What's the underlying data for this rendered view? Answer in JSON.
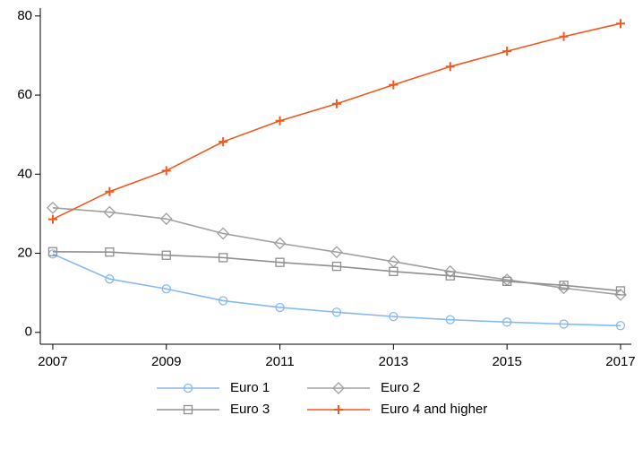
{
  "chart_data": {
    "type": "line",
    "x": [
      2007,
      2008,
      2009,
      2010,
      2011,
      2012,
      2013,
      2014,
      2015,
      2016,
      2017
    ],
    "series": [
      {
        "name": "Euro 1",
        "color": "#86b9f0",
        "marker": "circle",
        "values": [
          19.8,
          13.5,
          11,
          8,
          6.3,
          5.1,
          4,
          3.2,
          2.6,
          2.1,
          1.7
        ]
      },
      {
        "name": "Euro 2",
        "color": "#a0a0a0",
        "marker": "diamond",
        "values": [
          31.5,
          30.4,
          28.7,
          25,
          22.5,
          20.3,
          17.9,
          15.4,
          13.3,
          11.2,
          9.5
        ]
      },
      {
        "name": "Euro 3",
        "color": "#909090",
        "marker": "square",
        "values": [
          20.4,
          20.3,
          19.5,
          18.9,
          17.7,
          16.7,
          15.4,
          14.3,
          12.9,
          11.9,
          10.5
        ]
      },
      {
        "name": "Euro 4 and higher",
        "color": "#f0581e",
        "marker": "plus",
        "values": [
          28.6,
          35.6,
          40.9,
          48.2,
          53.5,
          57.8,
          62.6,
          67.2,
          71.1,
          74.8,
          78.1
        ]
      }
    ],
    "xlim": [
      2006.78,
      2017.19
    ],
    "xticks": [
      2007,
      2009,
      2011,
      2013,
      2015,
      2017
    ],
    "ylim": [
      -3,
      82
    ],
    "yticks": [
      0,
      20,
      40,
      60,
      80
    ],
    "grid": false,
    "legend": "bottom"
  }
}
